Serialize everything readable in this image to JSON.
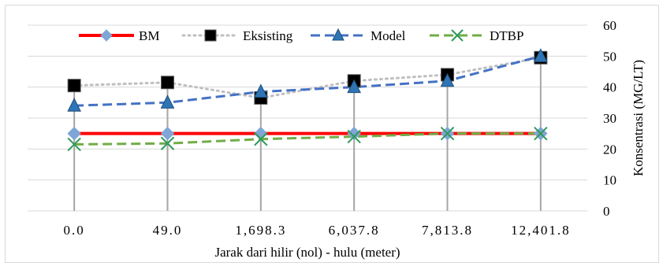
{
  "chart_data": {
    "type": "line",
    "title": "",
    "categories": [
      "0.0",
      "49.0",
      "1,698.3",
      "6,037.8",
      "7,813.8",
      "12,401.8"
    ],
    "xlabel": "Jarak dari hilir (nol) - hulu (meter)",
    "ylabel": "Konsentrasi (MG/LT)",
    "ylim": [
      0,
      60
    ],
    "yticks": [
      0,
      10,
      20,
      30,
      40,
      50,
      60
    ],
    "y_axis_side": "right",
    "grid": true,
    "legend_position": "top",
    "series": [
      {
        "name": "BM",
        "values": [
          25,
          25,
          25,
          25,
          25,
          25
        ],
        "color": "#ff0000",
        "line_style": "solid",
        "marker": "diamond",
        "marker_color": "#7fa6d6"
      },
      {
        "name": "Eksisting",
        "values": [
          40.5,
          41.5,
          36.5,
          42,
          44,
          49.5
        ],
        "color": "#bfbfbf",
        "line_style": "dotted",
        "marker": "square",
        "marker_color": "#000000"
      },
      {
        "name": "Model",
        "values": [
          34,
          35,
          38.5,
          40,
          42,
          50
        ],
        "color": "#4472c4",
        "line_style": "dashed",
        "marker": "triangle",
        "marker_color": "#2e75b6"
      },
      {
        "name": "DTBP",
        "values": [
          21.5,
          21.8,
          23.2,
          24,
          25,
          25
        ],
        "color": "#70ad47",
        "line_style": "dashed",
        "marker": "x",
        "marker_color": "#2e9a5a"
      }
    ],
    "drop_lines": true,
    "drop_line_color": "#a6a6a6"
  }
}
